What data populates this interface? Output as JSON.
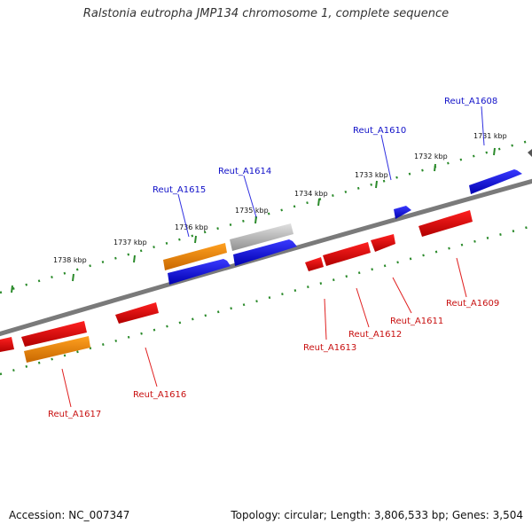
{
  "title": "Ralstonia eutropha JMP134 chromosome 1, complete sequence",
  "footer": {
    "accession": "Accession: NC_007347",
    "summary": "Topology: circular; Length: 3,806,533 bp; Genes: 3,504"
  },
  "ticks": [
    "1731 kbp",
    "1732 kbp",
    "1733 kbp",
    "1734 kbp",
    "1735 kbp",
    "1736 kbp",
    "1737 kbp",
    "1738 kbp"
  ],
  "genes_top": [
    "Reut_A1608",
    "Reut_A1610",
    "Reut_A1614",
    "Reut_A1615"
  ],
  "genes_bottom": [
    "Reut_A1609",
    "Reut_A1611",
    "Reut_A1612",
    "Reut_A1613",
    "Reut_A1616",
    "Reut_A1617"
  ],
  "colors": {
    "forward": "#1010d8",
    "reverse": "#e00000",
    "orange": "#f08c00",
    "gray": "#b0b0b0",
    "backbone": "#7a7a7a",
    "ticks": "#2a8a2a"
  }
}
